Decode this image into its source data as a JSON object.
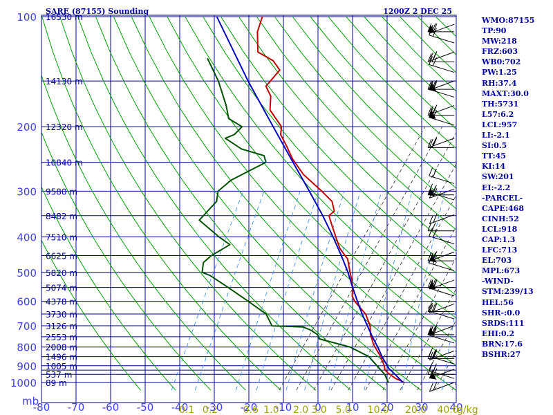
{
  "chart_data": {
    "type": "line",
    "title": "SARE (87155) Sounding",
    "valid_time": "1200Z  2 DEC 25",
    "xlabel": "",
    "ylabel": "mb",
    "x_unit": "C",
    "xlim": [
      -80,
      40
    ],
    "ylim_mb": [
      100,
      1000
    ],
    "temperature_ticks": [
      "-80",
      "-70",
      "-60",
      "-50",
      "-40",
      "-30",
      "-20",
      "-10",
      "0",
      "10",
      "20",
      "30",
      "40"
    ],
    "pressure_ticks": [
      {
        "p": 100,
        "label": "100"
      },
      {
        "p": 200,
        "label": "200"
      },
      {
        "p": 300,
        "label": "300"
      },
      {
        "p": 400,
        "label": "400"
      },
      {
        "p": 500,
        "label": "500"
      },
      {
        "p": 600,
        "label": "600"
      },
      {
        "p": 700,
        "label": "700"
      },
      {
        "p": 800,
        "label": "800"
      },
      {
        "p": 900,
        "label": "900"
      },
      {
        "p": 1000,
        "label": "1000"
      }
    ],
    "pressure_grid": [
      100,
      150,
      200,
      250,
      300,
      350,
      400,
      450,
      500,
      550,
      600,
      650,
      700,
      750,
      800,
      850,
      900,
      925,
      950,
      1000
    ],
    "height_labels": [
      {
        "p": 100,
        "label": "16530 m"
      },
      {
        "p": 150,
        "label": "14130 m"
      },
      {
        "p": 200,
        "label": "12320 m"
      },
      {
        "p": 250,
        "label": "10840 m"
      },
      {
        "p": 300,
        "label": "9580 m"
      },
      {
        "p": 350,
        "label": "8482 m"
      },
      {
        "p": 400,
        "label": "7510 m"
      },
      {
        "p": 450,
        "label": "6625 m"
      },
      {
        "p": 500,
        "label": "5820 m"
      },
      {
        "p": 550,
        "label": "5074 m"
      },
      {
        "p": 600,
        "label": "4378 m"
      },
      {
        "p": 650,
        "label": "3730 m"
      },
      {
        "p": 700,
        "label": "3126 m"
      },
      {
        "p": 750,
        "label": "2553 m"
      },
      {
        "p": 800,
        "label": "2008 m"
      },
      {
        "p": 850,
        "label": "1496 m"
      },
      {
        "p": 900,
        "label": "1005 m"
      },
      {
        "p": 950,
        "label": "537 m"
      },
      {
        "p": 1000,
        "label": "89 m"
      }
    ],
    "mixing_ratio_labels": [
      {
        "label": "0.1",
        "w": 0.1
      },
      {
        "label": "0.2",
        "w": 0.2
      },
      {
        "label": "0.6",
        "w": 0.6
      },
      {
        "label": "1.0",
        "w": 1.0
      },
      {
        "label": "2.0",
        "w": 2.0
      },
      {
        "label": "3.0",
        "w": 3.0
      },
      {
        "label": "5.0",
        "w": 5.0
      },
      {
        "label": "10.0",
        "w": 10.0
      },
      {
        "label": "20.0",
        "w": 20.0
      },
      {
        "label": "40.0",
        "w": 40.0
      }
    ],
    "mixing_ratio_unit": "g/kg",
    "series": [
      {
        "name": "Temperature",
        "color": "#c00000",
        "points": [
          {
            "p": 1000,
            "t": 24.8
          },
          {
            "p": 990,
            "t": 23.8
          },
          {
            "p": 975,
            "t": 21.8
          },
          {
            "p": 950,
            "t": 19.5
          },
          {
            "p": 925,
            "t": 17.4
          },
          {
            "p": 900,
            "t": 16.5
          },
          {
            "p": 880,
            "t": 15.5
          },
          {
            "p": 850,
            "t": 14.0
          },
          {
            "p": 800,
            "t": 10.8
          },
          {
            "p": 780,
            "t": 9.6
          },
          {
            "p": 760,
            "t": 8.6
          },
          {
            "p": 740,
            "t": 7.5
          },
          {
            "p": 700,
            "t": 6.0
          },
          {
            "p": 650,
            "t": 2.8
          },
          {
            "p": 600,
            "t": -2.4
          },
          {
            "p": 580,
            "t": -4.0
          },
          {
            "p": 550,
            "t": -5.2
          },
          {
            "p": 520,
            "t": -7.0
          },
          {
            "p": 500,
            "t": -8.4
          },
          {
            "p": 460,
            "t": -11.2
          },
          {
            "p": 430,
            "t": -15.2
          },
          {
            "p": 400,
            "t": -18.2
          },
          {
            "p": 370,
            "t": -21.4
          },
          {
            "p": 350,
            "t": -23.6
          },
          {
            "p": 340,
            "t": -22.8
          },
          {
            "p": 320,
            "t": -25.0
          },
          {
            "p": 300,
            "t": -29.6
          },
          {
            "p": 270,
            "t": -37.6
          },
          {
            "p": 245,
            "t": -43.2
          },
          {
            "p": 225,
            "t": -47.2
          },
          {
            "p": 210,
            "t": -50.6
          },
          {
            "p": 200,
            "t": -51.6
          },
          {
            "p": 180,
            "t": -57.6
          },
          {
            "p": 165,
            "t": -59.6
          },
          {
            "p": 155,
            "t": -62.6
          },
          {
            "p": 140,
            "t": -61.2
          },
          {
            "p": 132,
            "t": -64.6
          },
          {
            "p": 125,
            "t": -70.4
          },
          {
            "p": 110,
            "t": -73.8
          },
          {
            "p": 100,
            "t": -74.8
          }
        ]
      },
      {
        "name": "Dewpoint",
        "color": "#005000",
        "points": [
          {
            "p": 1000,
            "t": 20.4
          },
          {
            "p": 975,
            "t": 19.2
          },
          {
            "p": 950,
            "t": 18.0
          },
          {
            "p": 925,
            "t": 16.2
          },
          {
            "p": 900,
            "t": 14.4
          },
          {
            "p": 850,
            "t": 10.6
          },
          {
            "p": 800,
            "t": 3.6
          },
          {
            "p": 760,
            "t": -6.6
          },
          {
            "p": 740,
            "t": -7.8
          },
          {
            "p": 720,
            "t": -10.4
          },
          {
            "p": 705,
            "t": -13.2
          },
          {
            "p": 700,
            "t": -22.4
          },
          {
            "p": 650,
            "t": -26.0
          },
          {
            "p": 600,
            "t": -33.2
          },
          {
            "p": 550,
            "t": -41.2
          },
          {
            "p": 510,
            "t": -48.4
          },
          {
            "p": 500,
            "t": -51.2
          },
          {
            "p": 470,
            "t": -52.4
          },
          {
            "p": 450,
            "t": -51.2
          },
          {
            "p": 420,
            "t": -47.6
          },
          {
            "p": 400,
            "t": -52.0
          },
          {
            "p": 360,
            "t": -60.4
          },
          {
            "p": 320,
            "t": -58.4
          },
          {
            "p": 300,
            "t": -59.6
          },
          {
            "p": 280,
            "t": -57.6
          },
          {
            "p": 250,
            "t": -50.4
          },
          {
            "p": 240,
            "t": -52.0
          },
          {
            "p": 230,
            "t": -59.6
          },
          {
            "p": 215,
            "t": -66.0
          },
          {
            "p": 210,
            "t": -64.0
          },
          {
            "p": 200,
            "t": -63.0
          },
          {
            "p": 190,
            "t": -68.2
          },
          {
            "p": 175,
            "t": -71.0
          },
          {
            "p": 150,
            "t": -77.2
          },
          {
            "p": 130,
            "t": -84.0
          }
        ]
      },
      {
        "name": "Parcel",
        "color": "#0000c0",
        "points": [
          {
            "p": 1000,
            "t": 24.6
          },
          {
            "p": 950,
            "t": 21.0
          },
          {
            "p": 918,
            "t": 18.4
          },
          {
            "p": 850,
            "t": 14.4
          },
          {
            "p": 800,
            "t": 11.6
          },
          {
            "p": 750,
            "t": 8.4
          },
          {
            "p": 700,
            "t": 5.2
          },
          {
            "p": 650,
            "t": 1.8
          },
          {
            "p": 600,
            "t": -1.6
          },
          {
            "p": 550,
            "t": -5.2
          },
          {
            "p": 500,
            "t": -9.0
          },
          {
            "p": 450,
            "t": -13.6
          },
          {
            "p": 400,
            "t": -19.0
          },
          {
            "p": 350,
            "t": -25.4
          },
          {
            "p": 300,
            "t": -33.2
          },
          {
            "p": 250,
            "t": -42.6
          },
          {
            "p": 200,
            "t": -54.0
          },
          {
            "p": 150,
            "t": -68.6
          },
          {
            "p": 100,
            "t": -88.0
          }
        ]
      }
    ],
    "wind_barbs": [
      {
        "p": 105
      },
      {
        "p": 110
      },
      {
        "p": 118
      },
      {
        "p": 125
      },
      {
        "p": 133
      },
      {
        "p": 142
      },
      {
        "p": 150
      },
      {
        "p": 158
      },
      {
        "p": 166
      },
      {
        "p": 175
      },
      {
        "p": 186
      },
      {
        "p": 198
      },
      {
        "p": 215
      },
      {
        "p": 228
      },
      {
        "p": 286
      },
      {
        "p": 296
      },
      {
        "p": 307
      },
      {
        "p": 317
      },
      {
        "p": 348
      },
      {
        "p": 385
      },
      {
        "p": 418
      },
      {
        "p": 440
      },
      {
        "p": 465
      },
      {
        "p": 495
      },
      {
        "p": 525
      },
      {
        "p": 550
      },
      {
        "p": 580
      },
      {
        "p": 610
      },
      {
        "p": 640
      },
      {
        "p": 670
      },
      {
        "p": 700
      },
      {
        "p": 740
      },
      {
        "p": 780
      },
      {
        "p": 820
      },
      {
        "p": 860
      },
      {
        "p": 890
      },
      {
        "p": 920
      },
      {
        "p": 950
      },
      {
        "p": 975
      },
      {
        "p": 1000
      }
    ]
  },
  "indices": [
    "WMO:87155",
    "TP:90",
    "MW:218",
    "FRZ:603",
    "WB0:702",
    "PW:1.25",
    "RH:37.4",
    "MAXT:30.0",
    "TH:5731",
    "L57:6.2",
    "LCL:957",
    "LI:-2.1",
    "SI:0.5",
    "TT:45",
    "KI:14",
    "SW:201",
    "EI:-2.2",
    "-PARCEL-",
    "CAPE:468",
    "CINH:52",
    "LCL:918",
    "CAP:1.3",
    "LFC:713",
    "EL:703",
    "MPL:673",
    "-WIND-",
    "STM:239/13",
    "HEL:56",
    "SHR-:0.0",
    "SRDS:111",
    "EHI:0.2",
    "BRN:17.6",
    "BSHR:27"
  ],
  "colors": {
    "isobar": "#00008b",
    "isotherm": "#0000b0",
    "dry_adiabat": "#00a000",
    "moist_adiabat": "#404040",
    "mixing_ratio": "#4090ff",
    "text": "#0000a0",
    "axis_label": "#4040ff",
    "mr_label": "#a0a000",
    "barb": "#000000"
  }
}
